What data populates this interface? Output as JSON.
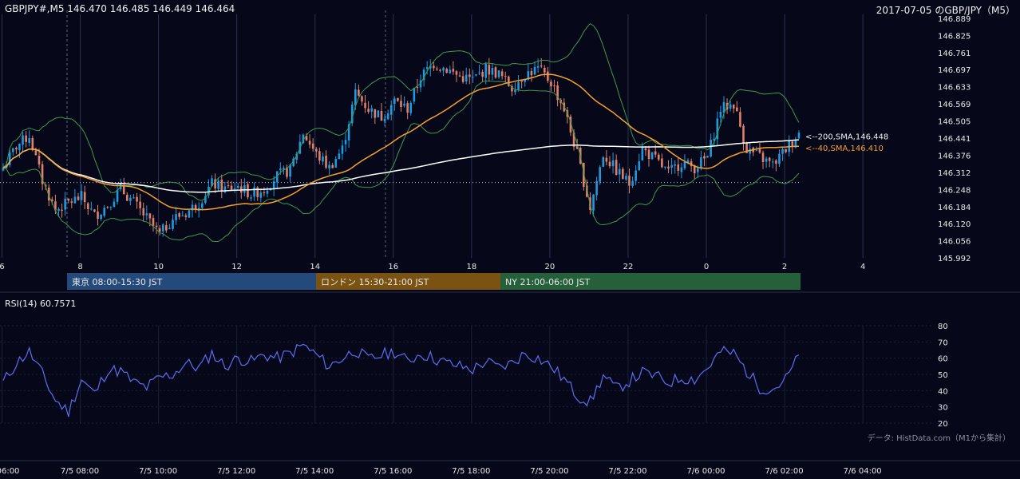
{
  "header": {
    "quote": "GBPJPY#,M5 146.470 146.485 146.449 146.464",
    "title": "2017-07-05 のGBP/JPY（M5）"
  },
  "colors": {
    "background": "#06081a",
    "bull": "#1e9be0",
    "bear": "#e0806a",
    "sma200": "#ffffff",
    "sma40": "#f5a030",
    "bollinger": "#3d9a4a",
    "rsi": "#5b6ef0",
    "session_tokyo": "#234a7a",
    "session_london": "#7a5212",
    "session_ny": "#25603a"
  },
  "chart_data": [
    {
      "type": "candlestick",
      "title": "",
      "ylim": [
        145.992,
        146.889
      ],
      "y_ticks": [
        "146.889",
        "146.825",
        "146.761",
        "146.697",
        "146.633",
        "146.569",
        "146.505",
        "146.441",
        "146.376",
        "146.312",
        "146.248",
        "146.184",
        "146.120",
        "146.056",
        "145.992"
      ],
      "x_ticks": [
        "6",
        "8",
        "10",
        "12",
        "14",
        "16",
        "18",
        "20",
        "22",
        "0",
        "2",
        "4"
      ],
      "reference_line": 146.274,
      "series": [
        {
          "name": "<200,SMA,146.448",
          "last": 146.448
        },
        {
          "name": "<40,SMA,146.410",
          "last": 146.41
        }
      ],
      "sma_label_prefix": "<--",
      "sessions": [
        {
          "label": "東京 08:00-15:30 JST"
        },
        {
          "label": "ロンドン 15:30-21:00 JST"
        },
        {
          "label": "NY 21:00-06:00 JST"
        }
      ],
      "keypoints": [
        [
          0,
          146.33
        ],
        [
          4,
          146.41
        ],
        [
          8,
          146.45
        ],
        [
          12,
          146.28
        ],
        [
          16,
          146.17
        ],
        [
          20,
          146.2
        ],
        [
          24,
          146.22
        ],
        [
          28,
          146.15
        ],
        [
          32,
          146.19
        ],
        [
          36,
          146.25
        ],
        [
          40,
          146.2
        ],
        [
          44,
          146.14
        ],
        [
          48,
          146.08
        ],
        [
          52,
          146.14
        ],
        [
          56,
          146.16
        ],
        [
          60,
          146.2
        ],
        [
          64,
          146.27
        ],
        [
          68,
          146.25
        ],
        [
          72,
          146.26
        ],
        [
          76,
          146.23
        ],
        [
          80,
          146.25
        ],
        [
          84,
          146.3
        ],
        [
          88,
          146.32
        ],
        [
          92,
          146.46
        ],
        [
          96,
          146.38
        ],
        [
          100,
          146.33
        ],
        [
          104,
          146.4
        ],
        [
          108,
          146.61
        ],
        [
          112,
          146.55
        ],
        [
          116,
          146.52
        ],
        [
          120,
          146.58
        ],
        [
          124,
          146.55
        ],
        [
          128,
          146.67
        ],
        [
          132,
          146.72
        ],
        [
          136,
          146.7
        ],
        [
          140,
          146.67
        ],
        [
          144,
          146.66
        ],
        [
          148,
          146.7
        ],
        [
          152,
          146.68
        ],
        [
          156,
          146.63
        ],
        [
          160,
          146.68
        ],
        [
          164,
          146.7
        ],
        [
          168,
          146.65
        ],
        [
          172,
          146.55
        ],
        [
          176,
          146.38
        ],
        [
          180,
          146.18
        ],
        [
          184,
          146.38
        ],
        [
          188,
          146.32
        ],
        [
          192,
          146.27
        ],
        [
          196,
          146.4
        ],
        [
          200,
          146.36
        ],
        [
          204,
          146.31
        ],
        [
          208,
          146.35
        ],
        [
          212,
          146.33
        ],
        [
          216,
          146.37
        ],
        [
          220,
          146.55
        ],
        [
          224,
          146.57
        ],
        [
          228,
          146.4
        ],
        [
          232,
          146.37
        ],
        [
          236,
          146.34
        ],
        [
          240,
          146.4
        ],
        [
          244,
          146.46
        ]
      ]
    },
    {
      "type": "line",
      "title": "RSI(14) 60.7571",
      "ylim": [
        20,
        80
      ],
      "y_ticks": [
        "80",
        "70",
        "60",
        "50",
        "40",
        "30",
        "20"
      ],
      "x_ticks": [
        "06:00",
        "7/5 08:00",
        "7/5 10:00",
        "7/5 12:00",
        "7/5 14:00",
        "7/5 16:00",
        "7/5 18:00",
        "7/5 20:00",
        "7/5 22:00",
        "7/6 00:00",
        "7/6 02:00",
        "7/6 04:00"
      ],
      "series": [
        {
          "name": "",
          "keypoints": [
            [
              0,
              45
            ],
            [
              4,
              57
            ],
            [
              8,
              64
            ],
            [
              12,
              50
            ],
            [
              16,
              34
            ],
            [
              20,
              27
            ],
            [
              24,
              47
            ],
            [
              28,
              38
            ],
            [
              32,
              53
            ],
            [
              36,
              52
            ],
            [
              40,
              45
            ],
            [
              44,
              42
            ],
            [
              48,
              48
            ],
            [
              52,
              50
            ],
            [
              56,
              57
            ],
            [
              60,
              54
            ],
            [
              64,
              63
            ],
            [
              68,
              55
            ],
            [
              72,
              60
            ],
            [
              76,
              58
            ],
            [
              80,
              62
            ],
            [
              84,
              60
            ],
            [
              88,
              63
            ],
            [
              92,
              68
            ],
            [
              96,
              62
            ],
            [
              100,
              55
            ],
            [
              104,
              60
            ],
            [
              108,
              65
            ],
            [
              112,
              59
            ],
            [
              116,
              62
            ],
            [
              120,
              64
            ],
            [
              124,
              58
            ],
            [
              128,
              63
            ],
            [
              132,
              60
            ],
            [
              136,
              57
            ],
            [
              140,
              55
            ],
            [
              144,
              53
            ],
            [
              148,
              58
            ],
            [
              152,
              54
            ],
            [
              156,
              57
            ],
            [
              160,
              63
            ],
            [
              164,
              60
            ],
            [
              168,
              55
            ],
            [
              172,
              47
            ],
            [
              176,
              37
            ],
            [
              180,
              33
            ],
            [
              184,
              49
            ],
            [
              188,
              41
            ],
            [
              192,
              46
            ],
            [
              196,
              51
            ],
            [
              200,
              49
            ],
            [
              204,
              45
            ],
            [
              208,
              48
            ],
            [
              212,
              47
            ],
            [
              216,
              54
            ],
            [
              220,
              64
            ],
            [
              224,
              63
            ],
            [
              228,
              52
            ],
            [
              232,
              42
            ],
            [
              236,
              41
            ],
            [
              240,
              47
            ],
            [
              244,
              61
            ]
          ]
        }
      ]
    }
  ],
  "footer": {
    "source": "データ: HistData.com（M1から集計）"
  }
}
